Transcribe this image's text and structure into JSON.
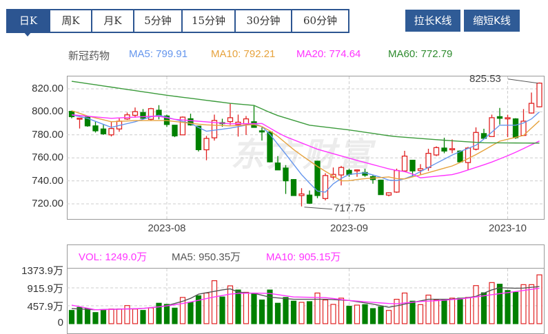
{
  "tabs": [
    {
      "label": "日K",
      "selected": true
    },
    {
      "label": "周K",
      "selected": false
    },
    {
      "label": "月K",
      "selected": false
    },
    {
      "label": "5分钟",
      "selected": false
    },
    {
      "label": "15分钟",
      "selected": false
    },
    {
      "label": "30分钟",
      "selected": false
    },
    {
      "label": "60分钟",
      "selected": false
    }
  ],
  "buttons": {
    "stretch": "拉长K线",
    "shrink": "缩短K线"
  },
  "colors": {
    "accent": "#2c5591",
    "up": "#e02020",
    "down": "#008000",
    "ma5": "#6495ed",
    "ma10": "#e6a23c",
    "ma20": "#ff33ff",
    "ma60": "#3a9a3a",
    "vol_ma5": "#555555",
    "vol_ma10": "#ff33ff"
  },
  "legend": {
    "name": "新冠药物",
    "ma5": "MA5: 799.91",
    "ma10": "MA10: 792.21",
    "ma20": "MA20: 774.64",
    "ma60": "MA60: 772.79"
  },
  "volume_legend": {
    "vol": "VOL: 1249.0万",
    "ma5": "MA5: 950.35万",
    "ma10": "MA10: 905.15万"
  },
  "watermark": "东方财富",
  "chart_data": [
    {
      "type": "candlestick",
      "title": "",
      "y_ticks": [
        "820.00",
        "800.00",
        "780.00",
        "760.00",
        "740.00",
        "720.00"
      ],
      "y_tick_values": [
        820,
        800,
        780,
        760,
        740,
        720
      ],
      "ylim": [
        706.8,
        830.8
      ],
      "grid": true,
      "x_ticks": [
        {
          "index": 12,
          "label": "2023-08"
        },
        {
          "index": 35,
          "label": "2023-09"
        },
        {
          "index": 55,
          "label": "2023-10"
        }
      ],
      "ohlc": [
        [
          800.4,
          801,
          794.4,
          795.8
        ],
        [
          794.0,
          794.8,
          785.5,
          794.5
        ],
        [
          795.4,
          796,
          787,
          787.8
        ],
        [
          787.8,
          791.4,
          782,
          783.5
        ],
        [
          785.1,
          788.8,
          780,
          780.9
        ],
        [
          780,
          791.4,
          778.6,
          785.5
        ],
        [
          785.1,
          794.4,
          782.7,
          791.9
        ],
        [
          793.8,
          799.4,
          793,
          797.4
        ],
        [
          797,
          803.8,
          795,
          800.2
        ],
        [
          799.4,
          802.4,
          793.5,
          794.4
        ],
        [
          793.5,
          803.5,
          792.7,
          802.8
        ],
        [
          801.4,
          805.8,
          793.5,
          796.4
        ],
        [
          796.4,
          797.6,
          787,
          789.0
        ],
        [
          788.4,
          788.6,
          778,
          779.1
        ],
        [
          780,
          796,
          780,
          795.4
        ],
        [
          794,
          798.4,
          788,
          788.6
        ],
        [
          787.6,
          788,
          765.5,
          767.1
        ],
        [
          767,
          779.1,
          757.9,
          776.9
        ],
        [
          777.4,
          797.6,
          775,
          792.5
        ],
        [
          790.6,
          794,
          787,
          790.0
        ],
        [
          791.5,
          807.4,
          788.5,
          794.9
        ],
        [
          789,
          797.6,
          778.5,
          791
        ],
        [
          789.5,
          796.4,
          779.9,
          793.9
        ],
        [
          791.4,
          805.4,
          786.5,
          786.5
        ],
        [
          783.5,
          786.5,
          775,
          782.5
        ],
        [
          782.5,
          783,
          756,
          756.5
        ],
        [
          755.5,
          761.5,
          749.5,
          749.5
        ],
        [
          751.1,
          753.7,
          728.6,
          740.0
        ],
        [
          741.1,
          741.5,
          727.2,
          727.2
        ],
        [
          727.2,
          733.6,
          717.75,
          728.6
        ],
        [
          727.6,
          731.6,
          720,
          720.5
        ],
        [
          757.1,
          757.5,
          724.9,
          727.2
        ],
        [
          724.6,
          746.6,
          723,
          744.6
        ],
        [
          743.2,
          751.6,
          741,
          745.6
        ],
        [
          745.1,
          753,
          736,
          751.6
        ],
        [
          749.1,
          750.5,
          743.5,
          745.6
        ],
        [
          748.9,
          750,
          743.5,
          749.5
        ],
        [
          747.3,
          750.5,
          743.5,
          744.9
        ],
        [
          743.6,
          745,
          737.5,
          741.1
        ],
        [
          740.6,
          741,
          728,
          728
        ],
        [
          727.6,
          730,
          726.5,
          729.6
        ],
        [
          730.2,
          750.6,
          729.5,
          749
        ],
        [
          748.6,
          766.1,
          748,
          761.5
        ],
        [
          757.9,
          758,
          743.6,
          748.6
        ],
        [
          749,
          754.5,
          745.5,
          750.5
        ],
        [
          751.6,
          767.9,
          748.6,
          763.9
        ],
        [
          762.5,
          770,
          761.5,
          768.9
        ],
        [
          768.5,
          777.5,
          764,
          765.9
        ],
        [
          767,
          776,
          764,
          768
        ],
        [
          765.9,
          766.5,
          756.5,
          756.5
        ],
        [
          755.9,
          769.5,
          749.5,
          768.5
        ],
        [
          767.5,
          786.5,
          766.5,
          782.1
        ],
        [
          781.1,
          785.3,
          776.5,
          777
        ],
        [
          778.5,
          797.6,
          778.5,
          794.9
        ],
        [
          795.8,
          803.4,
          789,
          794.4
        ],
        [
          793.9,
          797.5,
          778,
          794.9
        ],
        [
          793.9,
          794.5,
          776.5,
          777.5
        ],
        [
          779.5,
          802.4,
          779,
          791.9
        ],
        [
          799,
          816.8,
          798.5,
          807.4
        ],
        [
          804.4,
          825.53,
          804,
          825
        ]
      ],
      "ma_series": [
        {
          "name": "MA5",
          "points": [
            [
              0,
              797.4
            ],
            [
              2,
              794.4
            ],
            [
              5,
              786.5
            ],
            [
              8,
              791.4
            ],
            [
              10.8,
              797.4
            ],
            [
              13,
              793.5
            ],
            [
              15.6,
              788.8
            ],
            [
              16.6,
              782.8
            ],
            [
              20,
              785.8
            ],
            [
              23.5,
              790.5
            ],
            [
              25,
              780.5
            ],
            [
              27.2,
              761.5
            ],
            [
              29.2,
              743.6
            ],
            [
              31.2,
              729.7
            ],
            [
              31.8,
              728.7
            ],
            [
              33.3,
              739.6
            ],
            [
              35,
              745.6
            ],
            [
              37,
              747.0
            ],
            [
              38.8,
              743.6
            ],
            [
              40.5,
              739.4
            ],
            [
              42.5,
              742.6
            ],
            [
              45.5,
              753.5
            ],
            [
              48.3,
              763.5
            ],
            [
              51.2,
              771.5
            ],
            [
              54,
              788.4
            ],
            [
              56,
              788.4
            ],
            [
              57.6,
              791.4
            ],
            [
              59,
              799.9
            ]
          ]
        },
        {
          "name": "MA10",
          "points": [
            [
              0,
              801
            ],
            [
              2,
              796.4
            ],
            [
              5,
              791.4
            ],
            [
              8,
              792.4
            ],
            [
              12,
              792.4
            ],
            [
              16.6,
              788.8
            ],
            [
              20,
              787.8
            ],
            [
              23.5,
              789.1
            ],
            [
              25.5,
              781.5
            ],
            [
              28.3,
              765.5
            ],
            [
              31.2,
              751.6
            ],
            [
              34.2,
              739.2
            ],
            [
              36.4,
              741.6
            ],
            [
              40.5,
              743.6
            ],
            [
              41.4,
              740.6
            ],
            [
              44,
              745.2
            ],
            [
              48.3,
              753.5
            ],
            [
              51.2,
              763.5
            ],
            [
              54,
              774.5
            ],
            [
              57,
              779.5
            ],
            [
              59,
              792.2
            ]
          ]
        },
        {
          "name": "MA20",
          "points": [
            [
              0,
              797.4
            ],
            [
              5,
              794.4
            ],
            [
              10.8,
              796.4
            ],
            [
              13,
              793.5
            ],
            [
              20,
              789.6
            ],
            [
              24,
              789.9
            ],
            [
              26.6,
              779.5
            ],
            [
              31,
              767.5
            ],
            [
              35.6,
              758.5
            ],
            [
              40.5,
              749.5
            ],
            [
              42.5,
              747.5
            ],
            [
              44,
              742.6
            ],
            [
              48.3,
              745.6
            ],
            [
              52.7,
              755.5
            ],
            [
              55.6,
              763.5
            ],
            [
              59,
              774.6
            ]
          ]
        },
        {
          "name": "MA60",
          "points": [
            [
              0,
              826.6
            ],
            [
              11.8,
              814.6
            ],
            [
              20,
              807.4
            ],
            [
              23,
              805.6
            ],
            [
              25.7,
              797.4
            ],
            [
              30,
              788.4
            ],
            [
              35.3,
              784
            ],
            [
              40.5,
              778.7
            ],
            [
              46.6,
              775.5
            ],
            [
              51.8,
              773.1
            ],
            [
              59,
              772.8
            ]
          ]
        }
      ],
      "annotations": [
        {
          "label": "825.53",
          "index": 59,
          "value": 825.53
        },
        {
          "label": "717.75",
          "index": 29,
          "value": 717.75
        }
      ]
    },
    {
      "type": "bar",
      "title": "",
      "unit": "万",
      "y_ticks": [
        "1373.9万",
        "915.9万",
        "457.9万",
        "0"
      ],
      "y_tick_values": [
        1373.9,
        915.9,
        457.9,
        0
      ],
      "ylim": [
        0,
        1373.9
      ],
      "grid": true,
      "volumes": [
        339,
        416,
        386,
        285,
        339,
        374,
        374,
        463,
        374,
        339,
        404,
        523,
        493,
        398,
        671,
        546,
        713,
        784,
        1099,
        683,
        968,
        861,
        802,
        772,
        606,
        861,
        523,
        671,
        576,
        546,
        564,
        784,
        606,
        493,
        653,
        446,
        475,
        487,
        386,
        434,
        339,
        624,
        784,
        576,
        487,
        731,
        606,
        606,
        653,
        653,
        671,
        974,
        790,
        1051,
        1010,
        849,
        802,
        998,
        998,
        1249
      ],
      "up": [
        0,
        0,
        0,
        0,
        0,
        1,
        1,
        1,
        1,
        0,
        1,
        0,
        0,
        0,
        1,
        0,
        0,
        1,
        1,
        0,
        1,
        0,
        1,
        0,
        0,
        0,
        0,
        0,
        0,
        1,
        0,
        1,
        1,
        1,
        1,
        0,
        1,
        0,
        0,
        0,
        1,
        1,
        1,
        0,
        1,
        1,
        1,
        0,
        1,
        0,
        1,
        1,
        0,
        1,
        0,
        0,
        0,
        1,
        1,
        1
      ],
      "ma_series": [
        {
          "name": "MA5",
          "points": [
            [
              0,
              386
            ],
            [
              3,
              356
            ],
            [
              8.8,
              386
            ],
            [
              11.7,
              445
            ],
            [
              14.6,
              606
            ],
            [
              16,
              754
            ],
            [
              18.9,
              861
            ],
            [
              20,
              891
            ],
            [
              21.1,
              802
            ],
            [
              23.3,
              772
            ],
            [
              24.7,
              683
            ],
            [
              28,
              624
            ],
            [
              32.1,
              624
            ],
            [
              35,
              594
            ],
            [
              37.9,
              505
            ],
            [
              40.1,
              416
            ],
            [
              42.1,
              505
            ],
            [
              45,
              624
            ],
            [
              47.9,
              624
            ],
            [
              50.8,
              683
            ],
            [
              53.7,
              921
            ],
            [
              56.6,
              903
            ],
            [
              59,
              950.35
            ]
          ]
        },
        {
          "name": "MA10",
          "points": [
            [
              0,
              475
            ],
            [
              3,
              356
            ],
            [
              8.8,
              386
            ],
            [
              11.7,
              445
            ],
            [
              14.6,
              535
            ],
            [
              17.5,
              665
            ],
            [
              20.4,
              772
            ],
            [
              23.3,
              784
            ],
            [
              25,
              772
            ],
            [
              28,
              683
            ],
            [
              32.1,
              665
            ],
            [
              35,
              594
            ],
            [
              37.9,
              546
            ],
            [
              40.8,
              505
            ],
            [
              43.7,
              564
            ],
            [
              46.6,
              594
            ],
            [
              49.5,
              641
            ],
            [
              52.4,
              725
            ],
            [
              55.3,
              802
            ],
            [
              59,
              905.15
            ]
          ]
        }
      ]
    }
  ]
}
